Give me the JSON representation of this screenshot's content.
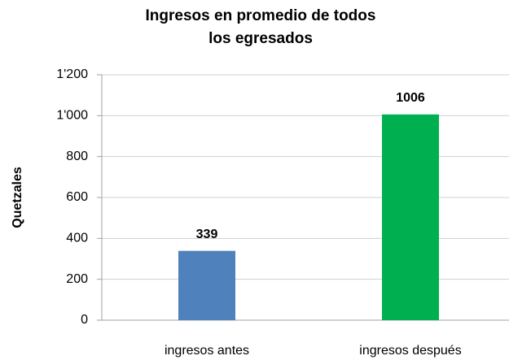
{
  "chart_data": {
    "type": "bar",
    "title": "Ingresos en promedio de todos los egresados",
    "y_label": "Quetzales",
    "categories": [
      "ingresos antes",
      "ingresos después"
    ],
    "values": [
      339,
      1006
    ],
    "colors": [
      "#4f81bd",
      "#00b050"
    ],
    "ylim": [
      0,
      1200
    ],
    "yticks": [
      0,
      200,
      400,
      600,
      800,
      {
        "value": 1000,
        "label": "1'000"
      },
      {
        "value": 1200,
        "label": "1'200"
      }
    ],
    "grid": true
  }
}
